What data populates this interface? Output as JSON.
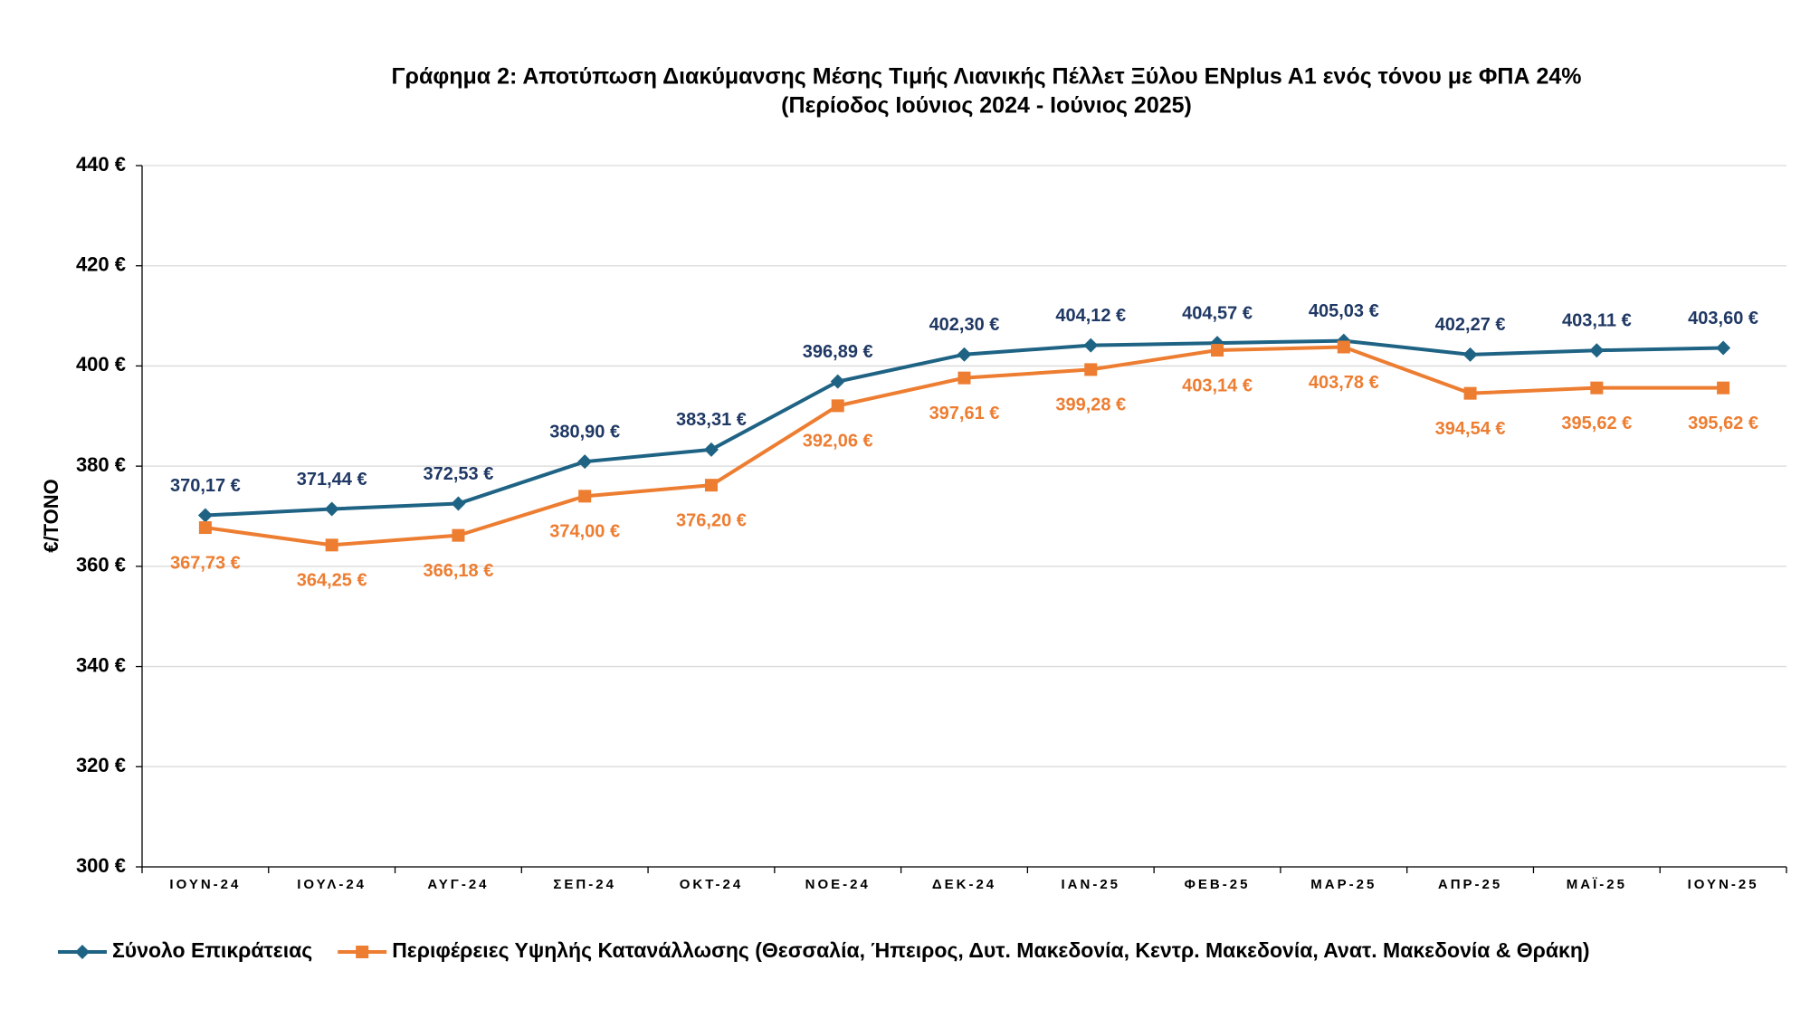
{
  "chart_data": {
    "type": "line",
    "title": "Γράφημα 2: Αποτύπωση  Διακύμανσης Μέσης Τιμής Λιανικής Πέλλετ Ξύλου ENplus A1 ενός τόνου με ΦΠΑ 24%",
    "subtitle": "(Περίοδος Ιούνιος 2024 - Ιούνιος 2025)",
    "y_label": "€/ΤΟΝΟ",
    "categories": [
      "ΙΟΥΝ-24",
      "ΙΟΥΛ-24",
      "ΑΥΓ-24",
      "ΣΕΠ-24",
      "ΟΚΤ-24",
      "ΝΟΕ-24",
      "ΔΕΚ-24",
      "ΙΑΝ-25",
      "ΦΕΒ-25",
      "ΜΑΡ-25",
      "ΑΠΡ-25",
      "ΜΑΪ-25",
      "ΙΟΥΝ-25"
    ],
    "series": [
      {
        "name": "Σύνολο Επικράτειας",
        "color": "#1f6384",
        "marker": "diamond",
        "values": [
          370.17,
          371.44,
          372.53,
          380.9,
          383.31,
          396.89,
          402.3,
          404.12,
          404.57,
          405.03,
          402.27,
          403.11,
          403.6
        ],
        "value_labels": [
          "370,17 €",
          "371,44 €",
          "372,53 €",
          "380,90 €",
          "383,31 €",
          "396,89 €",
          "402,30 €",
          "404,12 €",
          "404,57 €",
          "405,03 €",
          "402,27 €",
          "403,11 €",
          "403,60 €"
        ]
      },
      {
        "name": "Περιφέρειες Υψηλής Κατανάλλωσης (Θεσσαλία, Ήπειρος, Δυτ. Μακεδονία, Κεντρ. Μακεδονία, Ανατ. Μακεδονία & Θράκη)",
        "color": "#ed7d31",
        "marker": "square",
        "values": [
          367.73,
          364.25,
          366.18,
          374.0,
          376.2,
          392.06,
          397.61,
          399.28,
          403.14,
          403.78,
          394.54,
          395.62,
          395.62
        ],
        "value_labels": [
          "367,73 €",
          "364,25 €",
          "366,18 €",
          "374,00 €",
          "376,20 €",
          "392,06 €",
          "397,61 €",
          "399,28 €",
          "403,14 €",
          "403,78 €",
          "394,54 €",
          "395,62 €",
          "395,62 €"
        ]
      }
    ],
    "ylim": [
      300,
      440
    ],
    "yticks": [
      {
        "value": 300,
        "label": "300 €"
      },
      {
        "value": 320,
        "label": "320 €"
      },
      {
        "value": 340,
        "label": "340 €"
      },
      {
        "value": 360,
        "label": "360 €"
      },
      {
        "value": 380,
        "label": "380 €"
      },
      {
        "value": 400,
        "label": "400 €"
      },
      {
        "value": 420,
        "label": "420 €"
      },
      {
        "value": 440,
        "label": "440 €"
      }
    ],
    "grid": true
  }
}
